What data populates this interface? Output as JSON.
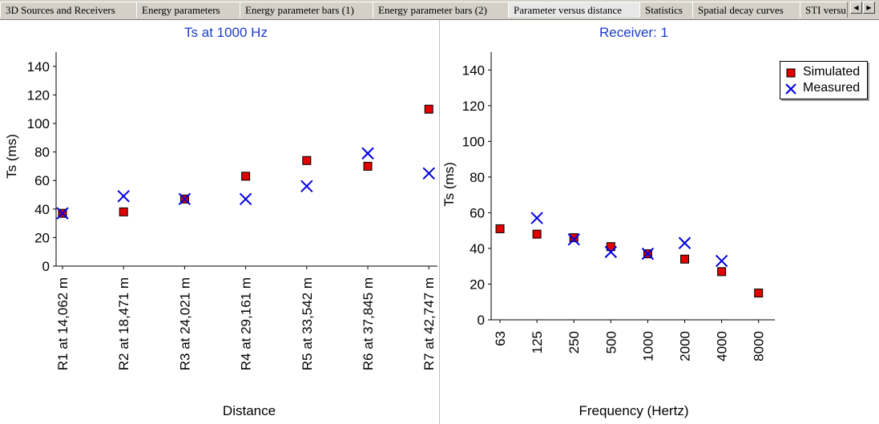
{
  "tabs": [
    {
      "label": "3D Sources and Receivers"
    },
    {
      "label": "Energy parameters"
    },
    {
      "label": "Energy parameter bars (1)"
    },
    {
      "label": "Energy parameter bars (2)"
    },
    {
      "label": "Parameter versus distance"
    },
    {
      "label": "Statistics"
    },
    {
      "label": "Spatial decay curves"
    },
    {
      "label": "STI versu"
    }
  ],
  "scroll": {
    "left_icon": "arrow-left-icon",
    "right_icon": "arrow-right-icon"
  },
  "legend": {
    "simulated": "Simulated",
    "measured": "Measured"
  },
  "colors": {
    "simulated": "#e00000",
    "measured": "#0000e0"
  },
  "chart_data": [
    {
      "type": "scatter",
      "title": "Ts at 1000 Hz",
      "xlabel": "Distance",
      "ylabel": "Ts (ms)",
      "ylim": [
        0,
        150
      ],
      "yticks": [
        "0",
        "20",
        "40",
        "60",
        "80",
        "100",
        "120",
        "140"
      ],
      "categories": [
        "R1 at 14,062 m",
        "R2 at 18,471 m",
        "R3 at 24,021 m",
        "R4 at 29,161 m",
        "R5 at 33,542 m",
        "R6 at 37,845 m",
        "R7 at 42,747 m"
      ],
      "series": [
        {
          "name": "Simulated",
          "values": [
            37,
            38,
            47,
            63,
            74,
            70,
            110
          ]
        },
        {
          "name": "Measured",
          "values": [
            37,
            49,
            47,
            47,
            56,
            79,
            65
          ]
        }
      ]
    },
    {
      "type": "scatter",
      "title": "Receiver: 1",
      "xlabel": "Frequency (Hertz)",
      "ylabel": "Ts (ms)",
      "ylim": [
        0,
        150
      ],
      "yticks": [
        "0",
        "20",
        "40",
        "60",
        "80",
        "100",
        "120",
        "140"
      ],
      "categories": [
        "63",
        "125",
        "250",
        "500",
        "1000",
        "2000",
        "4000",
        "8000"
      ],
      "series": [
        {
          "name": "Simulated",
          "values": [
            51,
            48,
            46,
            41,
            37,
            34,
            27,
            15
          ]
        },
        {
          "name": "Measured",
          "values": [
            null,
            57,
            45,
            38,
            37,
            43,
            33,
            null
          ]
        }
      ]
    }
  ]
}
